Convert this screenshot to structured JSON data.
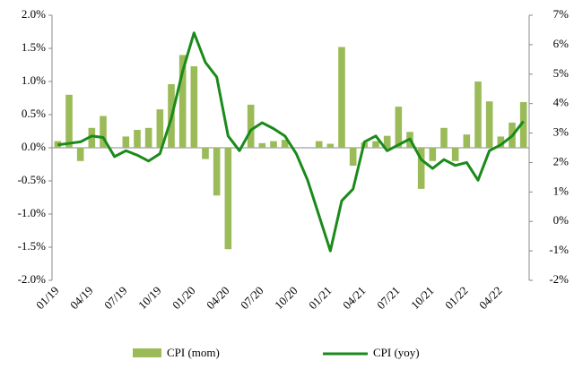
{
  "chart_data": {
    "type": "bar-line",
    "categories": [
      "01/19",
      null,
      null,
      "04/19",
      null,
      null,
      "07/19",
      null,
      null,
      "10/19",
      null,
      null,
      "01/20",
      null,
      null,
      "04/20",
      null,
      null,
      "07/20",
      null,
      null,
      "10/20",
      null,
      null,
      "01/21",
      null,
      null,
      "04/21",
      null,
      null,
      "07/21",
      null,
      null,
      "10/21",
      null,
      null,
      "01/22",
      null,
      null,
      "04/22",
      null,
      null
    ],
    "series": [
      {
        "name": "CPI (mom)",
        "color": "#9bbb59",
        "axis": "y",
        "values": [
          0.1,
          0.8,
          -0.2,
          0.3,
          0.48,
          0.0,
          0.17,
          0.27,
          0.3,
          0.58,
          0.96,
          1.4,
          1.23,
          -0.17,
          -0.72,
          -1.53,
          0.0,
          0.65,
          0.07,
          0.1,
          0.12,
          0.0,
          0.0,
          0.1,
          0.06,
          1.52,
          -0.27,
          0.08,
          0.1,
          0.18,
          0.62,
          0.24,
          -0.62,
          -0.2,
          0.3,
          -0.2,
          0.2,
          1.0,
          0.7,
          0.17,
          0.38,
          0.69
        ]
      },
      {
        "name": "CPI (yoy)",
        "color": "#1a8a1a",
        "axis": "y2",
        "values": [
          2.6,
          2.65,
          2.7,
          2.9,
          2.85,
          2.2,
          2.4,
          2.25,
          2.05,
          2.3,
          3.5,
          5.1,
          6.4,
          5.4,
          4.9,
          2.9,
          2.4,
          3.1,
          3.35,
          3.15,
          2.9,
          2.3,
          1.4,
          0.2,
          -1.0,
          0.7,
          1.1,
          2.7,
          2.9,
          2.4,
          2.6,
          2.8,
          2.1,
          1.8,
          2.1,
          1.9,
          2.0,
          1.4,
          2.4,
          2.6,
          2.9,
          3.4
        ]
      }
    ],
    "ylim": [
      -2,
      2
    ],
    "yticks": [
      {
        "value": -2,
        "label": "-2.0%"
      },
      {
        "value": -1.5,
        "label": "-1.5%"
      },
      {
        "value": -1,
        "label": "-1.0%"
      },
      {
        "value": -0.5,
        "label": "-0.5%"
      },
      {
        "value": 0,
        "label": "0.0%"
      },
      {
        "value": 0.5,
        "label": "0.5%"
      },
      {
        "value": 1,
        "label": "1.0%"
      },
      {
        "value": 1.5,
        "label": "1.5%"
      },
      {
        "value": 2,
        "label": "2.0%"
      }
    ],
    "y2lim": [
      -2,
      7
    ],
    "y2ticks": [
      {
        "value": -2,
        "label": "-2%"
      },
      {
        "value": -1,
        "label": "-1%"
      },
      {
        "value": 0,
        "label": "0%"
      },
      {
        "value": 1,
        "label": "1%"
      },
      {
        "value": 2,
        "label": "2%"
      },
      {
        "value": 3,
        "label": "3%"
      },
      {
        "value": 4,
        "label": "4%"
      },
      {
        "value": 5,
        "label": "5%"
      },
      {
        "value": 6,
        "label": "6%"
      },
      {
        "value": 7,
        "label": "7%"
      }
    ],
    "grid": false,
    "legend": "bottom"
  }
}
